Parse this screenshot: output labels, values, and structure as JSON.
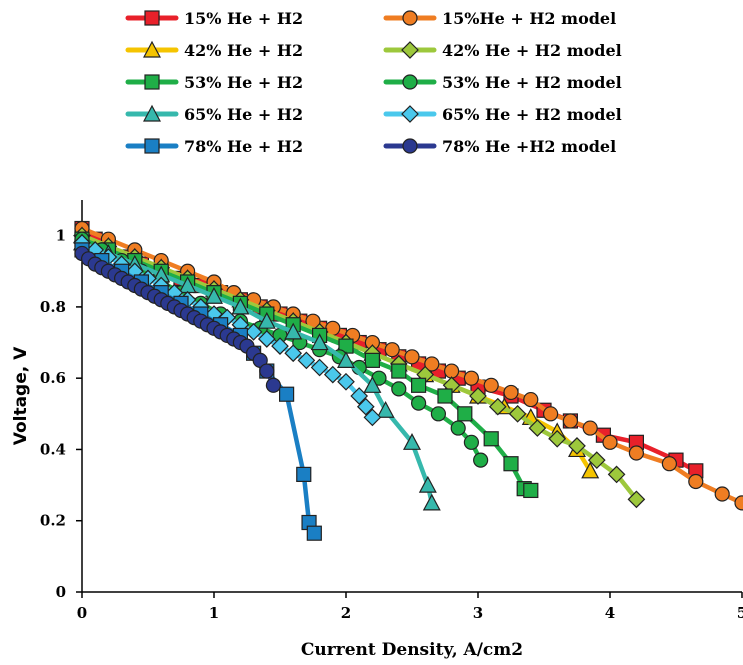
{
  "chart_data": {
    "type": "line",
    "xlabel": "Current Density, A/cm2",
    "ylabel": "Voltage, V",
    "xlim": [
      0,
      5
    ],
    "ylim": [
      0,
      1.1
    ],
    "x_ticks": [
      "0",
      "1",
      "2",
      "3",
      "4",
      "5"
    ],
    "y_ticks": [
      "0",
      "0.2",
      "0.4",
      "0.6",
      "0.8",
      "1"
    ],
    "grid": false,
    "legend_position": "top",
    "series": [
      {
        "name": "15% He + H2",
        "color": "#e8202a",
        "marker": "square",
        "points": [
          [
            0.0,
            1.02
          ],
          [
            0.1,
            0.99
          ],
          [
            0.2,
            0.96
          ],
          [
            0.3,
            0.94
          ],
          [
            0.45,
            0.92
          ],
          [
            0.6,
            0.9
          ],
          [
            0.75,
            0.88
          ],
          [
            0.9,
            0.86
          ],
          [
            1.05,
            0.84
          ],
          [
            1.2,
            0.82
          ],
          [
            1.35,
            0.8
          ],
          [
            1.5,
            0.78
          ],
          [
            1.65,
            0.76
          ],
          [
            1.8,
            0.74
          ],
          [
            1.95,
            0.72
          ],
          [
            2.1,
            0.7
          ],
          [
            2.25,
            0.68
          ],
          [
            2.4,
            0.66
          ],
          [
            2.55,
            0.64
          ],
          [
            2.7,
            0.62
          ],
          [
            2.85,
            0.6
          ],
          [
            3.0,
            0.575
          ],
          [
            3.25,
            0.55
          ],
          [
            3.5,
            0.51
          ],
          [
            3.7,
            0.48
          ],
          [
            3.95,
            0.44
          ],
          [
            4.2,
            0.42
          ],
          [
            4.5,
            0.37
          ],
          [
            4.65,
            0.34
          ]
        ]
      },
      {
        "name": "15%He + H2 model",
        "color": "#ef7d22",
        "marker": "circle",
        "points": [
          [
            0.0,
            1.02
          ],
          [
            0.2,
            0.99
          ],
          [
            0.4,
            0.96
          ],
          [
            0.6,
            0.93
          ],
          [
            0.8,
            0.9
          ],
          [
            1.0,
            0.87
          ],
          [
            1.15,
            0.84
          ],
          [
            1.3,
            0.82
          ],
          [
            1.45,
            0.8
          ],
          [
            1.6,
            0.78
          ],
          [
            1.75,
            0.76
          ],
          [
            1.9,
            0.74
          ],
          [
            2.05,
            0.72
          ],
          [
            2.2,
            0.7
          ],
          [
            2.35,
            0.68
          ],
          [
            2.5,
            0.66
          ],
          [
            2.65,
            0.64
          ],
          [
            2.8,
            0.62
          ],
          [
            2.95,
            0.6
          ],
          [
            3.1,
            0.58
          ],
          [
            3.25,
            0.56
          ],
          [
            3.4,
            0.54
          ],
          [
            3.55,
            0.5
          ],
          [
            3.7,
            0.48
          ],
          [
            3.85,
            0.46
          ],
          [
            4.0,
            0.42
          ],
          [
            4.2,
            0.39
          ],
          [
            4.45,
            0.36
          ],
          [
            4.65,
            0.31
          ],
          [
            4.85,
            0.275
          ],
          [
            5.0,
            0.25
          ]
        ]
      },
      {
        "name": "42% He + H2",
        "color": "#f5c400",
        "marker": "triangle",
        "points": [
          [
            0.0,
            1.0
          ],
          [
            0.2,
            0.97
          ],
          [
            0.4,
            0.94
          ],
          [
            0.6,
            0.91
          ],
          [
            0.8,
            0.88
          ],
          [
            1.0,
            0.85
          ],
          [
            1.2,
            0.82
          ],
          [
            1.4,
            0.79
          ],
          [
            1.6,
            0.76
          ],
          [
            1.8,
            0.73
          ],
          [
            2.0,
            0.7
          ],
          [
            2.2,
            0.67
          ],
          [
            2.4,
            0.64
          ],
          [
            2.6,
            0.61
          ],
          [
            2.8,
            0.58
          ],
          [
            3.0,
            0.55
          ],
          [
            3.2,
            0.52
          ],
          [
            3.4,
            0.49
          ],
          [
            3.6,
            0.45
          ],
          [
            3.75,
            0.4
          ],
          [
            3.85,
            0.34
          ]
        ]
      },
      {
        "name": "42% He + H2 model",
        "color": "#9dc83c",
        "marker": "diamond",
        "points": [
          [
            0.0,
            1.0
          ],
          [
            0.2,
            0.97
          ],
          [
            0.4,
            0.94
          ],
          [
            0.6,
            0.91
          ],
          [
            0.8,
            0.88
          ],
          [
            1.0,
            0.85
          ],
          [
            1.2,
            0.82
          ],
          [
            1.4,
            0.79
          ],
          [
            1.6,
            0.76
          ],
          [
            1.8,
            0.73
          ],
          [
            2.0,
            0.7
          ],
          [
            2.2,
            0.67
          ],
          [
            2.4,
            0.64
          ],
          [
            2.6,
            0.61
          ],
          [
            2.8,
            0.58
          ],
          [
            3.0,
            0.55
          ],
          [
            3.15,
            0.52
          ],
          [
            3.3,
            0.5
          ],
          [
            3.45,
            0.46
          ],
          [
            3.6,
            0.43
          ],
          [
            3.75,
            0.41
          ],
          [
            3.9,
            0.37
          ],
          [
            4.05,
            0.33
          ],
          [
            4.2,
            0.26
          ]
        ]
      },
      {
        "name": "53% He + H2",
        "color": "#1fae47",
        "marker": "square",
        "points": [
          [
            0.0,
            0.99
          ],
          [
            0.2,
            0.96
          ],
          [
            0.4,
            0.93
          ],
          [
            0.6,
            0.9
          ],
          [
            0.8,
            0.87
          ],
          [
            1.0,
            0.84
          ],
          [
            1.2,
            0.81
          ],
          [
            1.4,
            0.78
          ],
          [
            1.6,
            0.75
          ],
          [
            1.8,
            0.72
          ],
          [
            2.0,
            0.69
          ],
          [
            2.2,
            0.65
          ],
          [
            2.4,
            0.62
          ],
          [
            2.55,
            0.58
          ],
          [
            2.75,
            0.55
          ],
          [
            2.9,
            0.5
          ],
          [
            3.1,
            0.43
          ],
          [
            3.25,
            0.36
          ],
          [
            3.35,
            0.29
          ],
          [
            3.4,
            0.285
          ]
        ]
      },
      {
        "name": "53% He + H2 model",
        "color": "#1fae47",
        "marker": "circle",
        "points": [
          [
            0.0,
            0.99
          ],
          [
            0.15,
            0.96
          ],
          [
            0.3,
            0.93
          ],
          [
            0.45,
            0.9
          ],
          [
            0.6,
            0.87
          ],
          [
            0.75,
            0.84
          ],
          [
            0.9,
            0.81
          ],
          [
            1.05,
            0.78
          ],
          [
            1.2,
            0.76
          ],
          [
            1.35,
            0.74
          ],
          [
            1.5,
            0.72
          ],
          [
            1.65,
            0.7
          ],
          [
            1.8,
            0.68
          ],
          [
            1.95,
            0.66
          ],
          [
            2.1,
            0.63
          ],
          [
            2.25,
            0.6
          ],
          [
            2.4,
            0.57
          ],
          [
            2.55,
            0.53
          ],
          [
            2.7,
            0.5
          ],
          [
            2.85,
            0.46
          ],
          [
            2.95,
            0.42
          ],
          [
            3.02,
            0.37
          ]
        ]
      },
      {
        "name": "65% He + H2",
        "color": "#36b8ac",
        "marker": "triangle",
        "points": [
          [
            0.0,
            0.98
          ],
          [
            0.2,
            0.95
          ],
          [
            0.4,
            0.92
          ],
          [
            0.6,
            0.89
          ],
          [
            0.8,
            0.86
          ],
          [
            1.0,
            0.83
          ],
          [
            1.2,
            0.8
          ],
          [
            1.4,
            0.76
          ],
          [
            1.6,
            0.73
          ],
          [
            1.8,
            0.7
          ],
          [
            2.0,
            0.65
          ],
          [
            2.2,
            0.58
          ],
          [
            2.3,
            0.51
          ],
          [
            2.5,
            0.42
          ],
          [
            2.62,
            0.3
          ],
          [
            2.65,
            0.25
          ]
        ]
      },
      {
        "name": "65% He + H2 model",
        "color": "#4ac8ec",
        "marker": "diamond",
        "points": [
          [
            0.0,
            0.98
          ],
          [
            0.1,
            0.96
          ],
          [
            0.2,
            0.94
          ],
          [
            0.3,
            0.92
          ],
          [
            0.4,
            0.9
          ],
          [
            0.5,
            0.88
          ],
          [
            0.6,
            0.86
          ],
          [
            0.7,
            0.84
          ],
          [
            0.8,
            0.82
          ],
          [
            0.9,
            0.8
          ],
          [
            1.0,
            0.78
          ],
          [
            1.1,
            0.77
          ],
          [
            1.2,
            0.75
          ],
          [
            1.3,
            0.73
          ],
          [
            1.4,
            0.71
          ],
          [
            1.5,
            0.69
          ],
          [
            1.6,
            0.67
          ],
          [
            1.7,
            0.65
          ],
          [
            1.8,
            0.63
          ],
          [
            1.9,
            0.61
          ],
          [
            2.0,
            0.59
          ],
          [
            2.1,
            0.55
          ],
          [
            2.15,
            0.52
          ],
          [
            2.2,
            0.49
          ]
        ]
      },
      {
        "name": "78% He + H2",
        "color": "#1a7fc4",
        "marker": "square",
        "points": [
          [
            0.0,
            0.96
          ],
          [
            0.15,
            0.93
          ],
          [
            0.3,
            0.9
          ],
          [
            0.45,
            0.87
          ],
          [
            0.6,
            0.84
          ],
          [
            0.75,
            0.81
          ],
          [
            0.9,
            0.78
          ],
          [
            1.05,
            0.75
          ],
          [
            1.2,
            0.72
          ],
          [
            1.3,
            0.67
          ],
          [
            1.4,
            0.62
          ],
          [
            1.55,
            0.555
          ],
          [
            1.68,
            0.33
          ],
          [
            1.72,
            0.195
          ],
          [
            1.76,
            0.165
          ]
        ]
      },
      {
        "name": "78% He +H2 model",
        "color": "#2b3990",
        "marker": "circle",
        "points": [
          [
            0.0,
            0.95
          ],
          [
            0.05,
            0.935
          ],
          [
            0.1,
            0.92
          ],
          [
            0.15,
            0.91
          ],
          [
            0.2,
            0.9
          ],
          [
            0.25,
            0.89
          ],
          [
            0.3,
            0.88
          ],
          [
            0.35,
            0.87
          ],
          [
            0.4,
            0.86
          ],
          [
            0.45,
            0.85
          ],
          [
            0.5,
            0.84
          ],
          [
            0.55,
            0.83
          ],
          [
            0.6,
            0.82
          ],
          [
            0.65,
            0.81
          ],
          [
            0.7,
            0.8
          ],
          [
            0.75,
            0.79
          ],
          [
            0.8,
            0.78
          ],
          [
            0.85,
            0.77
          ],
          [
            0.9,
            0.76
          ],
          [
            0.95,
            0.75
          ],
          [
            1.0,
            0.74
          ],
          [
            1.05,
            0.73
          ],
          [
            1.1,
            0.72
          ],
          [
            1.15,
            0.71
          ],
          [
            1.2,
            0.7
          ],
          [
            1.25,
            0.69
          ],
          [
            1.3,
            0.67
          ],
          [
            1.35,
            0.65
          ],
          [
            1.4,
            0.62
          ],
          [
            1.45,
            0.58
          ]
        ]
      }
    ]
  }
}
